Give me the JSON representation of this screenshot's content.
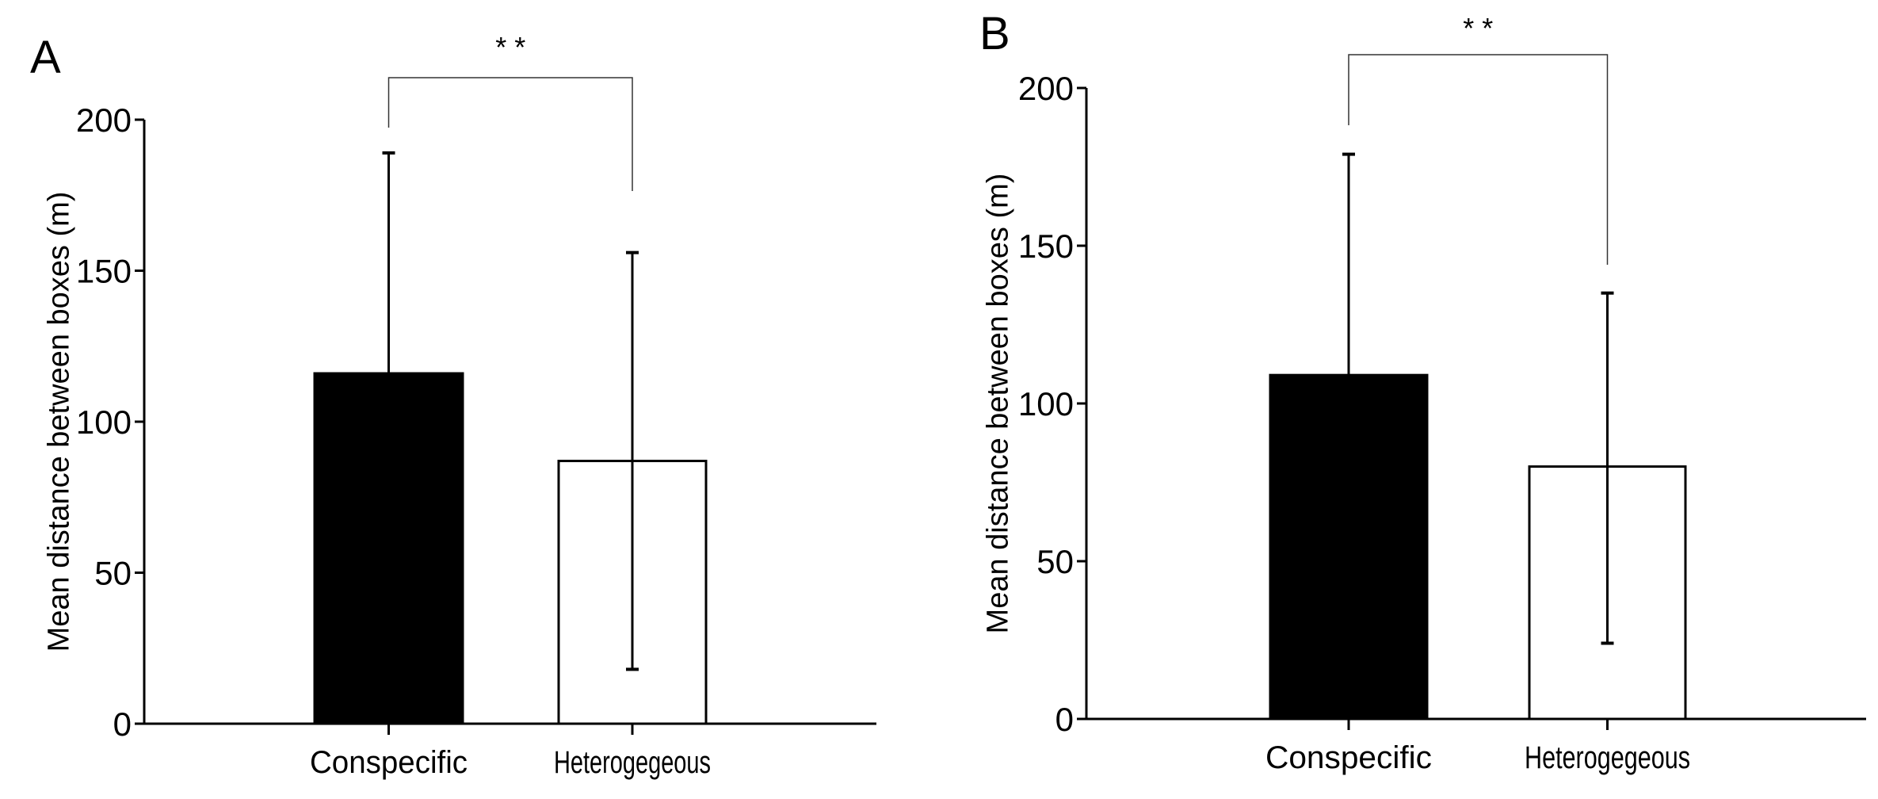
{
  "chart_data": [
    {
      "type": "bar",
      "panel_label": "A",
      "categories": [
        "Conspecific",
        "Heterogegeous"
      ],
      "values": [
        116,
        87
      ],
      "error_upper": [
        189,
        156
      ],
      "error_lower": [
        116,
        18
      ],
      "bar_colors": [
        "#000000",
        "#ffffff"
      ],
      "ylabel": "Mean distance between boxes (m)",
      "xlabel": "",
      "ylim": [
        0,
        200
      ],
      "yticks": [
        0,
        50,
        100,
        150,
        200
      ],
      "significance": "* *",
      "grid": false
    },
    {
      "type": "bar",
      "panel_label": "B",
      "categories": [
        "Conspecific",
        "Heterogegeous"
      ],
      "values": [
        109,
        80
      ],
      "error_upper": [
        179,
        135
      ],
      "error_lower": [
        109,
        24
      ],
      "bar_colors": [
        "#000000",
        "#ffffff"
      ],
      "ylabel": "Mean distance between boxes (m)",
      "xlabel": "",
      "ylim": [
        0,
        200
      ],
      "yticks": [
        0,
        50,
        100,
        150,
        200
      ],
      "significance": "* *",
      "grid": false
    }
  ]
}
